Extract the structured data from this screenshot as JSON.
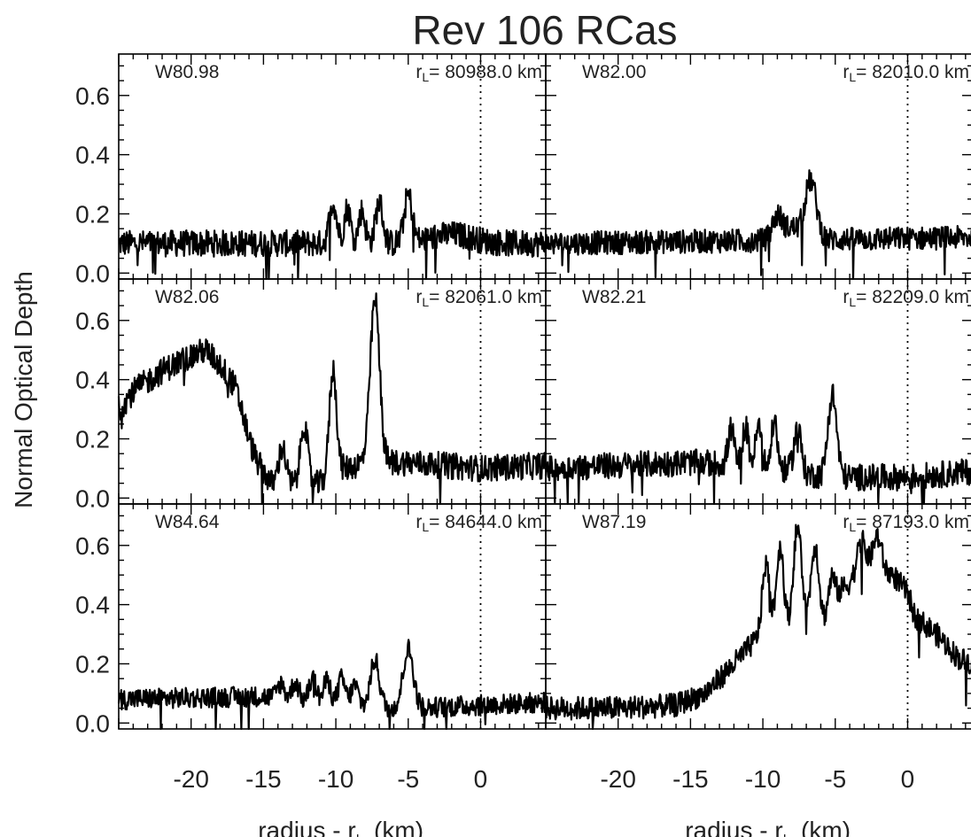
{
  "title": "Rev 106 RCas",
  "ylabel": "Normal Optical Depth",
  "xlabel_main": "radius - r",
  "xlabel_sub": "L",
  "xlabel_units": "(km)",
  "chart_data": {
    "type": "line",
    "title": "Rev 106 RCas",
    "ylabel": "Normal Optical Depth",
    "xlabel": "radius - rL (km)",
    "xlim": [
      -25,
      4.5
    ],
    "ylim": [
      -0.02,
      0.74
    ],
    "xticks": [
      "-20",
      "-15",
      "-10",
      "-5",
      "0"
    ],
    "yticks": [
      "0.0",
      "0.2",
      "0.4",
      "0.6"
    ],
    "panels": [
      {
        "name": "W80.98",
        "rL_label": "r",
        "rL_sub": "L",
        "rL_value": "= 80988.0 km",
        "baseline": 0.1,
        "noise": 0.045,
        "samples": [
          [
            -25,
            0.1
          ],
          [
            4.5,
            0.1
          ]
        ],
        "features": [
          [
            -10.2,
            0.14,
            0.25
          ],
          [
            -9.2,
            0.12,
            0.22
          ],
          [
            -8.2,
            0.11,
            0.22
          ],
          [
            -7,
            0.14,
            0.25
          ],
          [
            -5,
            0.16,
            0.28
          ],
          [
            -2,
            0.03,
            1.5
          ]
        ]
      },
      {
        "name": "W82.00",
        "rL_label": "r",
        "rL_sub": "L",
        "rL_value": "= 82010.0 km",
        "baseline": 0.11,
        "noise": 0.04,
        "samples": [
          [
            -25,
            0.1
          ],
          [
            4.5,
            0.12
          ]
        ],
        "features": [
          [
            -9,
            0.08,
            0.35
          ],
          [
            -6.7,
            0.2,
            0.4
          ],
          [
            -8,
            0.04,
            0.5
          ]
        ]
      },
      {
        "name": "W82.06",
        "rL_label": "r",
        "rL_sub": "L",
        "rL_value": "= 82061.0 km",
        "baseline": 0.1,
        "noise": 0.045,
        "samples": [
          [
            -25,
            0.3
          ],
          [
            -24,
            0.36
          ],
          [
            -22,
            0.43
          ],
          [
            -20,
            0.48
          ],
          [
            -19,
            0.5
          ],
          [
            -18,
            0.45
          ],
          [
            -17,
            0.38
          ],
          [
            -16.5,
            0.3
          ],
          [
            -16,
            0.2
          ],
          [
            -15.5,
            0.13
          ],
          [
            -14.5,
            0.05
          ],
          [
            -13.5,
            0.05
          ],
          [
            -12.5,
            0.04
          ],
          [
            -11,
            0.05
          ],
          [
            -10,
            0.09
          ],
          [
            -8,
            0.12
          ],
          [
            -5,
            0.12
          ],
          [
            0,
            0.1
          ],
          [
            4.5,
            0.11
          ]
        ],
        "features": [
          [
            -13.7,
            0.12,
            0.25
          ],
          [
            -12.2,
            0.21,
            0.25
          ],
          [
            -10.2,
            0.35,
            0.25
          ],
          [
            -7.3,
            0.55,
            0.32
          ]
        ]
      },
      {
        "name": "W82.21",
        "rL_label": "r",
        "rL_sub": "L",
        "rL_value": "= 82209.0 km",
        "baseline": 0.1,
        "noise": 0.045,
        "samples": [
          [
            -25,
            0.1
          ],
          [
            -15,
            0.12
          ],
          [
            -10,
            0.11
          ],
          [
            -7,
            0.08
          ],
          [
            -5,
            0.07
          ],
          [
            0,
            0.07
          ],
          [
            4.5,
            0.09
          ]
        ],
        "features": [
          [
            -12.2,
            0.12,
            0.2
          ],
          [
            -11.2,
            0.13,
            0.2
          ],
          [
            -10.3,
            0.13,
            0.2
          ],
          [
            -9.2,
            0.16,
            0.2
          ],
          [
            -7.6,
            0.15,
            0.25
          ],
          [
            -5.2,
            0.28,
            0.3
          ]
        ]
      },
      {
        "name": "W84.64",
        "rL_label": "r",
        "rL_sub": "L",
        "rL_value": "= 84644.0 km",
        "baseline": 0.08,
        "noise": 0.035,
        "samples": [
          [
            -25,
            0.08
          ],
          [
            -15,
            0.09
          ],
          [
            -10,
            0.06
          ],
          [
            -5,
            0.05
          ],
          [
            0,
            0.06
          ],
          [
            4.5,
            0.07
          ]
        ],
        "features": [
          [
            -13.8,
            0.05,
            0.25
          ],
          [
            -12.8,
            0.06,
            0.25
          ],
          [
            -11.6,
            0.08,
            0.25
          ],
          [
            -10.6,
            0.08,
            0.25
          ],
          [
            -9.6,
            0.09,
            0.25
          ],
          [
            -8.7,
            0.07,
            0.25
          ],
          [
            -7.3,
            0.16,
            0.3
          ],
          [
            -5,
            0.2,
            0.35
          ]
        ]
      },
      {
        "name": "W87.19",
        "rL_label": "r",
        "rL_sub": "L",
        "rL_value": "= 87193.0 km",
        "baseline": 0.05,
        "noise": 0.04,
        "samples": [
          [
            -25,
            0.05
          ],
          [
            -20,
            0.05
          ],
          [
            -16,
            0.06
          ],
          [
            -14,
            0.1
          ],
          [
            -13,
            0.15
          ],
          [
            -12,
            0.2
          ],
          [
            -10.5,
            0.28
          ],
          [
            -9.5,
            0.33
          ],
          [
            -8,
            0.3
          ],
          [
            -6,
            0.3
          ],
          [
            -5,
            0.32
          ],
          [
            -4.5,
            0.45
          ],
          [
            -3,
            0.52
          ],
          [
            -1,
            0.5
          ],
          [
            0,
            0.44
          ],
          [
            0.5,
            0.36
          ],
          [
            2,
            0.3
          ],
          [
            3.5,
            0.22
          ],
          [
            4.5,
            0.2
          ]
        ],
        "features": [
          [
            -9.8,
            0.22,
            0.25
          ],
          [
            -8.8,
            0.28,
            0.25
          ],
          [
            -7.6,
            0.36,
            0.3
          ],
          [
            -6.4,
            0.3,
            0.3
          ],
          [
            -5.2,
            0.18,
            0.3
          ],
          [
            -3.2,
            0.1,
            0.3
          ],
          [
            -2.1,
            0.12,
            0.3
          ]
        ]
      }
    ]
  }
}
